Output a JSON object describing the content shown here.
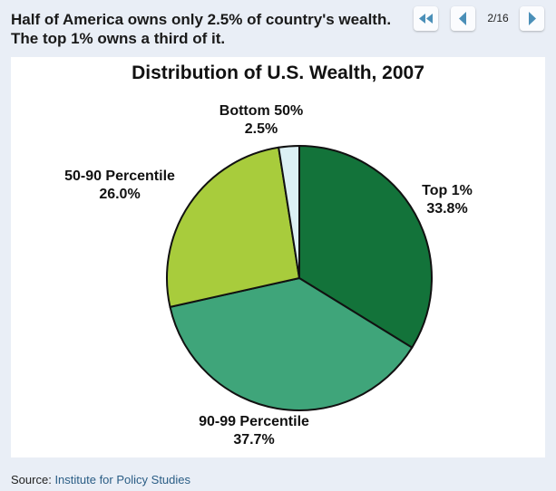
{
  "headline": "Half of America owns only 2.5% of country's wealth. The top 1% owns a third of it.",
  "nav": {
    "first_icon": "double-left-arrow-icon",
    "prev_icon": "left-arrow-icon",
    "next_icon": "right-arrow-icon",
    "page_indicator": "2/16",
    "current_page": 2,
    "total_pages": 16,
    "arrow_color": "#4a8fb8"
  },
  "source": {
    "label": "Source:",
    "link_text": "Institute for Policy Studies"
  },
  "chart_data": {
    "type": "pie",
    "title": "Distribution of U.S. Wealth, 2007",
    "start_angle_deg": 0,
    "direction": "clockwise",
    "slices": [
      {
        "label": "Top 1%",
        "value": 33.8,
        "value_label": "33.8%",
        "color": "#13733a"
      },
      {
        "label": "90-99 Percentile",
        "value": 37.7,
        "value_label": "37.7%",
        "color": "#3fa57a"
      },
      {
        "label": "50-90 Percentile",
        "value": 26.0,
        "value_label": "26.0%",
        "color": "#a8cc3c"
      },
      {
        "label": "Bottom 50%",
        "value": 2.5,
        "value_label": "2.5%",
        "color": "#dcf0f4"
      }
    ],
    "categories": [
      "Top 1%",
      "90-99 Percentile",
      "50-90 Percentile",
      "Bottom 50%"
    ],
    "values": [
      33.8,
      37.7,
      26.0,
      2.5
    ],
    "units": "%",
    "legend": "none (direct labels)"
  }
}
